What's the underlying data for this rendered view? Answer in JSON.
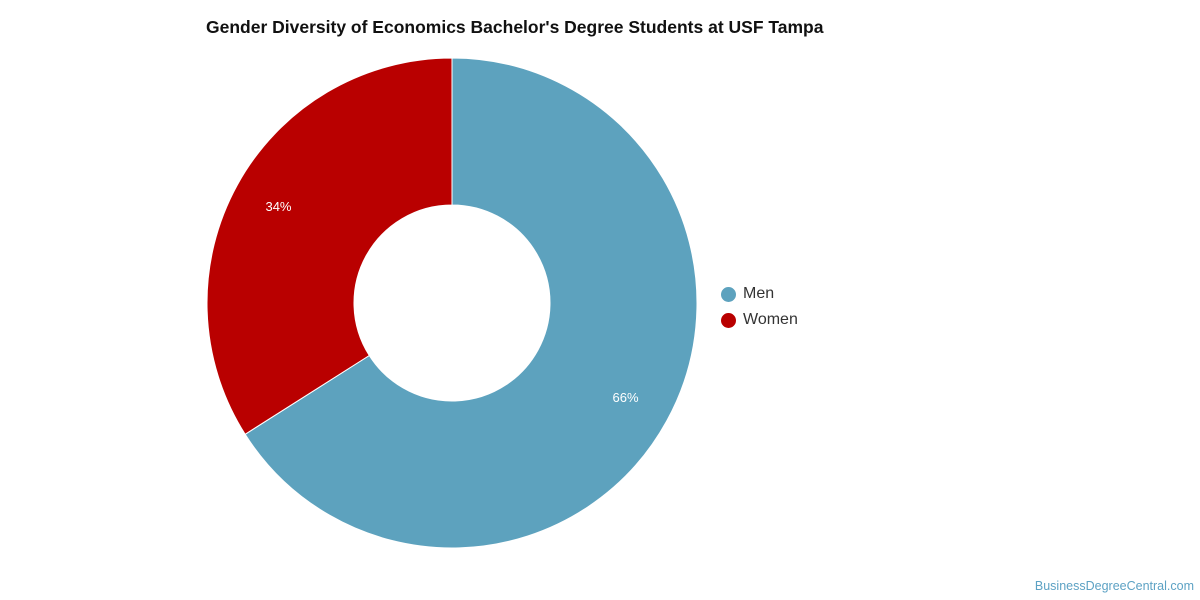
{
  "chart_data": {
    "type": "pie",
    "title": "Gender Diversity of Economics Bachelor's Degree Students at USF Tampa",
    "donut": true,
    "categories": [
      "Men",
      "Women"
    ],
    "values": [
      66,
      34
    ],
    "data_labels": [
      "66%",
      "34%"
    ],
    "colors": [
      "#5da2be",
      "#b90000"
    ],
    "legend": {
      "placement": "right",
      "entries": [
        "Men",
        "Women"
      ]
    }
  },
  "source": "BusinessDegreeCentral.com"
}
